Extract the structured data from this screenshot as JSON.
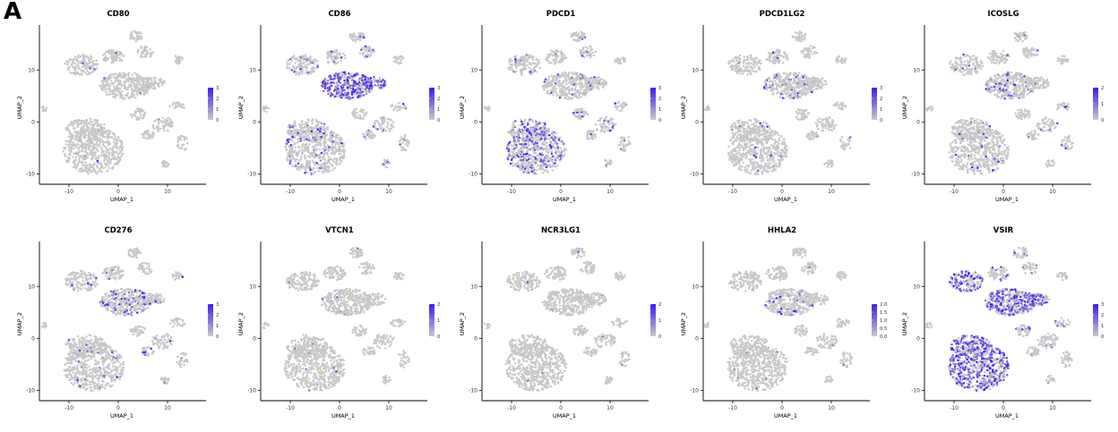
{
  "panel_label": "A",
  "colors": {
    "low": "#c8c8c8",
    "high": "#3a1cf0",
    "axis": "#000000"
  },
  "chart_data": [
    {
      "type": "scatter",
      "title": "CD80",
      "xlabel": "UMAP_1",
      "ylabel": "UMAP_2",
      "xticks": [
        -10,
        0,
        10
      ],
      "yticks": [
        -10,
        0,
        10
      ],
      "xlim": [
        -16,
        16
      ],
      "ylim": [
        -12,
        19
      ],
      "legend_ticks": [
        "3",
        "2",
        "1",
        "0"
      ],
      "legend_max": 3,
      "expression": {
        "high_clusters": [],
        "level": 0.05
      }
    },
    {
      "type": "scatter",
      "title": "CD86",
      "xlabel": "UMAP_1",
      "ylabel": "UMAP_2",
      "xticks": [
        -10,
        0,
        10
      ],
      "yticks": [
        -10,
        0,
        10
      ],
      "xlim": [
        -16,
        16
      ],
      "ylim": [
        -12,
        19
      ],
      "legend_ticks": [
        "3",
        "2",
        "1",
        "0"
      ],
      "legend_max": 3,
      "expression": {
        "high_clusters": [
          "mid",
          "midtail"
        ],
        "level": 0.7
      }
    },
    {
      "type": "scatter",
      "title": "PDCD1",
      "xlabel": "UMAP_1",
      "ylabel": "UMAP_2",
      "xticks": [
        -10,
        0,
        10
      ],
      "yticks": [
        -10,
        0,
        10
      ],
      "xlim": [
        -16,
        16
      ],
      "ylim": [
        -12,
        19
      ],
      "legend_ticks": [
        "3",
        "2",
        "1",
        "0"
      ],
      "legend_max": 3,
      "expression": {
        "high_clusters": [
          "bigleft"
        ],
        "level": 0.35
      }
    },
    {
      "type": "scatter",
      "title": "PDCD1LG2",
      "xlabel": "UMAP_1",
      "ylabel": "UMAP_2",
      "xticks": [
        -10,
        0,
        10
      ],
      "yticks": [
        -10,
        0,
        10
      ],
      "xlim": [
        -16,
        16
      ],
      "ylim": [
        -12,
        19
      ],
      "legend_ticks": [
        "3",
        "2",
        "1",
        "0"
      ],
      "legend_max": 3,
      "expression": {
        "high_clusters": [
          "mid"
        ],
        "level": 0.12
      }
    },
    {
      "type": "scatter",
      "title": "ICOSLG",
      "xlabel": "UMAP_1",
      "ylabel": "UMAP_2",
      "xticks": [
        -10,
        0,
        10
      ],
      "yticks": [
        -10,
        0,
        10
      ],
      "xlim": [
        -16,
        16
      ],
      "ylim": [
        -12,
        19
      ],
      "legend_ticks": [
        "2",
        "1",
        "0"
      ],
      "legend_max": 2,
      "expression": {
        "high_clusters": [
          "mid"
        ],
        "level": 0.2
      }
    },
    {
      "type": "scatter",
      "title": "CD276",
      "xlabel": "UMAP_1",
      "ylabel": "UMAP_2",
      "xticks": [
        -10,
        0,
        10
      ],
      "yticks": [
        -10,
        0,
        10
      ],
      "xlim": [
        -16,
        16
      ],
      "ylim": [
        -12,
        19
      ],
      "legend_ticks": [
        "3",
        "2",
        "1",
        "0"
      ],
      "legend_max": 3,
      "expression": {
        "high_clusters": [
          "mid",
          "right3"
        ],
        "level": 0.25
      }
    },
    {
      "type": "scatter",
      "title": "VTCN1",
      "xlabel": "UMAP_1",
      "ylabel": "UMAP_2",
      "xticks": [
        -10,
        0,
        10
      ],
      "yticks": [
        -10,
        0,
        10
      ],
      "xlim": [
        -16,
        16
      ],
      "ylim": [
        -12,
        19
      ],
      "legend_ticks": [
        "2",
        "1",
        "0"
      ],
      "legend_max": 2,
      "expression": {
        "high_clusters": [],
        "level": 0.04
      }
    },
    {
      "type": "scatter",
      "title": "NCR3LG1",
      "xlabel": "UMAP_1",
      "ylabel": "UMAP_2",
      "xticks": [
        -10,
        0,
        10
      ],
      "yticks": [
        -10,
        0,
        10
      ],
      "xlim": [
        -16,
        16
      ],
      "ylim": [
        -12,
        19
      ],
      "legend_ticks": [
        "2",
        "1",
        "0"
      ],
      "legend_max": 2,
      "expression": {
        "high_clusters": [],
        "level": 0.03
      }
    },
    {
      "type": "scatter",
      "title": "HHLA2",
      "xlabel": "UMAP_1",
      "ylabel": "UMAP_2",
      "xticks": [
        -10,
        0,
        10
      ],
      "yticks": [
        -10,
        0,
        10
      ],
      "xlim": [
        -16,
        16
      ],
      "ylim": [
        -12,
        19
      ],
      "legend_ticks": [
        "2.0",
        "1.5",
        "1.0",
        "0.5",
        "0.0"
      ],
      "legend_max": 2,
      "expression": {
        "high_clusters": [
          "mid"
        ],
        "level": 0.1
      }
    },
    {
      "type": "scatter",
      "title": "VSIR",
      "xlabel": "UMAP_1",
      "ylabel": "UMAP_2",
      "xticks": [
        -10,
        0,
        10
      ],
      "yticks": [
        -10,
        0,
        10
      ],
      "xlim": [
        -16,
        16
      ],
      "ylim": [
        -12,
        19
      ],
      "legend_ticks": [
        "3",
        "2",
        "1",
        "0"
      ],
      "legend_max": 3,
      "expression": {
        "high_clusters": [
          "mid",
          "bigleft",
          "topleft",
          "midtail"
        ],
        "level": 0.6
      }
    }
  ]
}
